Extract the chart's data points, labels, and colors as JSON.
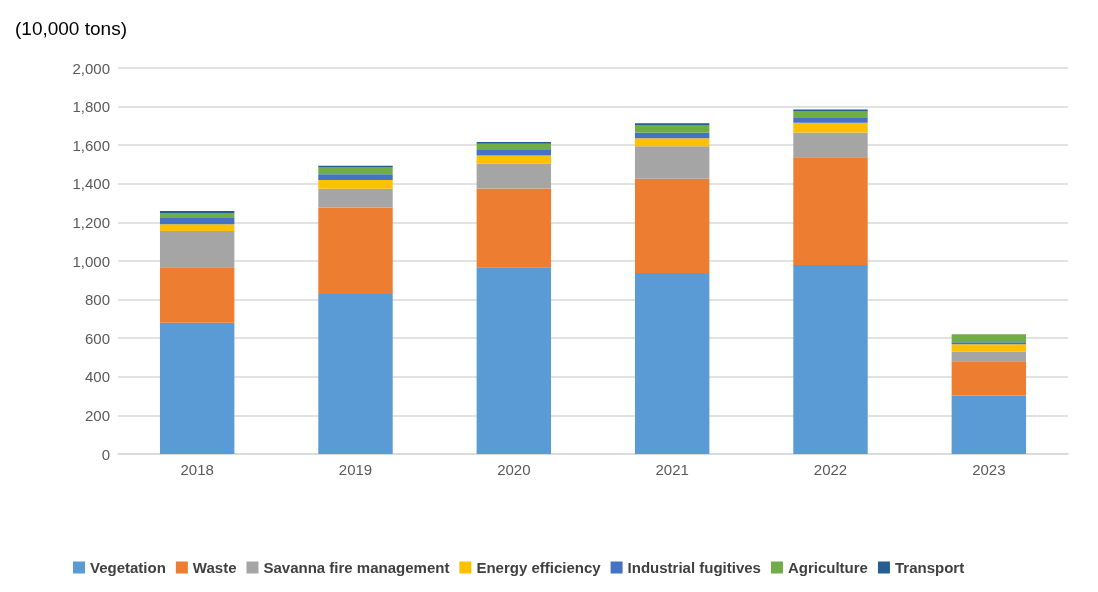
{
  "chart_data": {
    "type": "bar",
    "stacked": true,
    "ylabel": "(10,000 tons)",
    "categories": [
      "2018",
      "2019",
      "2020",
      "2021",
      "2022",
      "2023"
    ],
    "series": [
      {
        "name": "Vegetation",
        "color": "#5b9bd5",
        "values": [
          680,
          829,
          968,
          938,
          979,
          303
        ]
      },
      {
        "name": "Waste",
        "color": "#ed7d31",
        "values": [
          288,
          448,
          408,
          488,
          558,
          178
        ]
      },
      {
        "name": "Savanna fire management",
        "color": "#a5a5a5",
        "values": [
          188,
          98,
          128,
          169,
          129,
          49
        ]
      },
      {
        "name": "Energy efficiency",
        "color": "#ffc000",
        "values": [
          35,
          45,
          43,
          41,
          50,
          39
        ]
      },
      {
        "name": "Industrial fugitives",
        "color": "#4472c4",
        "values": [
          36,
          30,
          28,
          28,
          29,
          10
        ]
      },
      {
        "name": "Agriculture",
        "color": "#70ad47",
        "values": [
          22,
          35,
          33,
          41,
          32,
          41
        ]
      },
      {
        "name": "Transport",
        "color": "#255e91",
        "values": [
          10,
          9,
          8,
          9,
          8,
          0
        ]
      }
    ],
    "ylim": [
      0,
      2000
    ],
    "yticks": [
      0,
      200,
      400,
      600,
      800,
      {
        "value": 1000,
        "label": "1,000"
      },
      {
        "value": 1200,
        "label": "1,200"
      },
      {
        "value": 1400,
        "label": "1,400"
      },
      {
        "value": 1600,
        "label": "1,600"
      },
      {
        "value": 1800,
        "label": "1,800"
      },
      {
        "value": 2000,
        "label": "2,000"
      }
    ],
    "grid": "y",
    "legend": "bottom"
  }
}
